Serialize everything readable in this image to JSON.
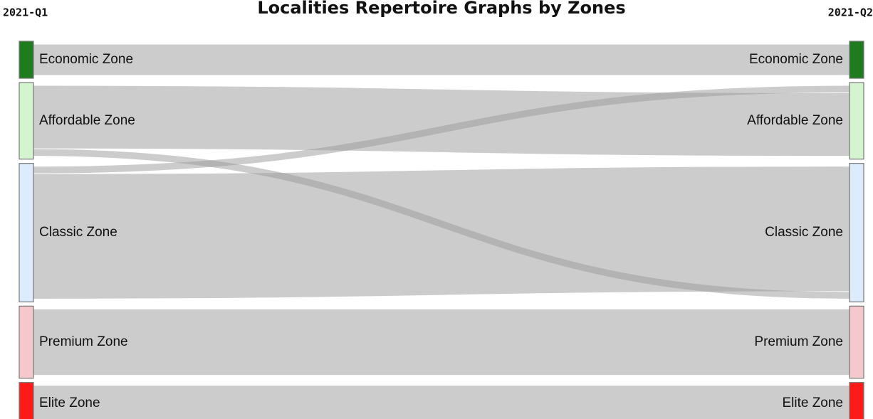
{
  "chart_data": {
    "type": "sankey",
    "title": "Localities Repertoire Graphs by Zones",
    "stages": [
      "2021-Q1",
      "2021-Q2"
    ],
    "nodes": [
      {
        "name": "Economic Zone",
        "color": "#1e7b1e"
      },
      {
        "name": "Affordable Zone",
        "color": "#d4f4cf"
      },
      {
        "name": "Classic Zone",
        "color": "#ddecfd"
      },
      {
        "name": "Premium Zone",
        "color": "#f4c8cc"
      },
      {
        "name": "Elite Zone",
        "color": "#ff1a1a"
      }
    ],
    "links": [
      {
        "source": 0,
        "target": 0,
        "value": 42
      },
      {
        "source": 1,
        "target": 1,
        "value": 85
      },
      {
        "source": 1,
        "target": 2,
        "value": 10
      },
      {
        "source": 2,
        "target": 1,
        "value": 10
      },
      {
        "source": 2,
        "target": 2,
        "value": 168
      },
      {
        "source": 3,
        "target": 3,
        "value": 89
      },
      {
        "source": 4,
        "target": 4,
        "value": 48
      }
    ],
    "link_color": "#999999"
  }
}
